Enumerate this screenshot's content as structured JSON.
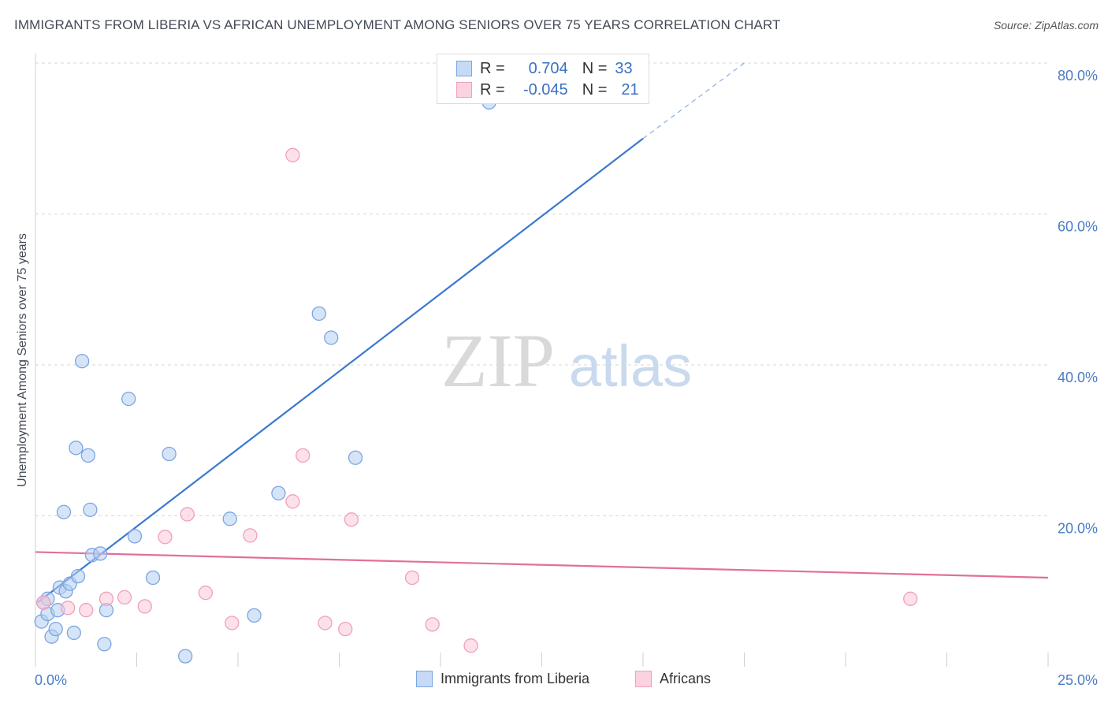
{
  "title": "IMMIGRANTS FROM LIBERIA VS AFRICAN UNEMPLOYMENT AMONG SENIORS OVER 75 YEARS CORRELATION CHART",
  "source": "Source: ZipAtlas.com",
  "watermark": {
    "zip": "ZIP",
    "atlas": "atlas"
  },
  "legend": {
    "rows": [
      {
        "r_label": "R =",
        "r_value": "0.704",
        "n_label": "N =",
        "n_value": "33",
        "color": "#6f9fe0"
      },
      {
        "r_label": "R =",
        "r_value": "-0.045",
        "n_label": "N =",
        "n_value": "21",
        "color": "#f08aaa"
      }
    ]
  },
  "bottom_legend": {
    "items": [
      {
        "label": "Immigrants from Liberia",
        "color": "#6f9fe0"
      },
      {
        "label": "Africans",
        "color": "#f08aaa"
      }
    ]
  },
  "chart_data": {
    "type": "scatter",
    "title": "IMMIGRANTS FROM LIBERIA VS AFRICAN UNEMPLOYMENT AMONG SENIORS OVER 75 YEARS CORRELATION CHART",
    "xlabel": "",
    "ylabel": "Unemployment Among Seniors over 75 years",
    "xlim": [
      0,
      25
    ],
    "ylim": [
      0,
      80
    ],
    "x_tick_labels": [
      "0.0%",
      "25.0%"
    ],
    "y_ticks": [
      20,
      40,
      60,
      80
    ],
    "y_tick_labels": [
      "20.0%",
      "40.0%",
      "60.0%",
      "80.0%"
    ],
    "grid": "horizontal dashed",
    "legend_position": "top-center",
    "series": [
      {
        "name": "Immigrants from Liberia",
        "color": "#6f9fe0",
        "points": [
          [
            0.15,
            6.0
          ],
          [
            0.2,
            8.5
          ],
          [
            0.3,
            7.0
          ],
          [
            0.3,
            9.0
          ],
          [
            0.4,
            4.0
          ],
          [
            0.5,
            5.0
          ],
          [
            0.55,
            7.5
          ],
          [
            0.6,
            10.5
          ],
          [
            0.7,
            20.5
          ],
          [
            0.75,
            10.0
          ],
          [
            0.85,
            11.0
          ],
          [
            0.95,
            4.5
          ],
          [
            1.0,
            29.0
          ],
          [
            1.05,
            12.0
          ],
          [
            1.15,
            40.5
          ],
          [
            1.3,
            28.0
          ],
          [
            1.35,
            20.8
          ],
          [
            1.4,
            14.8
          ],
          [
            1.6,
            15.0
          ],
          [
            1.7,
            3.0
          ],
          [
            1.75,
            7.5
          ],
          [
            2.3,
            35.5
          ],
          [
            2.45,
            17.3
          ],
          [
            2.9,
            11.8
          ],
          [
            3.3,
            28.2
          ],
          [
            3.7,
            1.4
          ],
          [
            4.8,
            19.6
          ],
          [
            5.4,
            6.8
          ],
          [
            6.0,
            23.0
          ],
          [
            7.0,
            46.8
          ],
          [
            7.3,
            43.6
          ],
          [
            7.9,
            27.7
          ],
          [
            11.2,
            74.8
          ]
        ],
        "trend": {
          "x": [
            0.05,
            15.0
          ],
          "y": [
            8.5,
            70.0
          ],
          "dashed_to": [
            17.5,
            80.0
          ]
        }
      },
      {
        "name": "Africans",
        "color": "#f08aaa",
        "points": [
          [
            0.2,
            8.5
          ],
          [
            0.8,
            7.8
          ],
          [
            1.25,
            7.5
          ],
          [
            1.75,
            9.0
          ],
          [
            2.2,
            9.2
          ],
          [
            2.7,
            8.0
          ],
          [
            3.2,
            17.2
          ],
          [
            3.75,
            20.2
          ],
          [
            4.2,
            9.8
          ],
          [
            4.85,
            5.8
          ],
          [
            5.3,
            17.4
          ],
          [
            6.35,
            67.8
          ],
          [
            6.35,
            21.9
          ],
          [
            6.6,
            28.0
          ],
          [
            7.15,
            5.8
          ],
          [
            7.8,
            19.5
          ],
          [
            7.65,
            5.0
          ],
          [
            9.3,
            11.8
          ],
          [
            9.8,
            5.6
          ],
          [
            10.75,
            2.8
          ],
          [
            21.6,
            9.0
          ]
        ],
        "trend": {
          "x": [
            0.0,
            25.0
          ],
          "y": [
            15.2,
            11.8
          ]
        }
      }
    ]
  }
}
